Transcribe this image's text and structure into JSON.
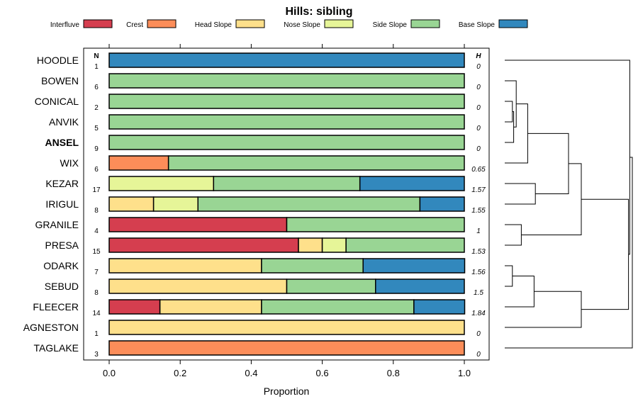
{
  "chart_data": {
    "type": "bar",
    "stacked": true,
    "title": "Hills: sibling",
    "xlabel": "Proportion",
    "xlim": [
      0,
      1
    ],
    "xticks": [
      "0.0",
      "0.2",
      "0.4",
      "0.6",
      "0.8",
      "1.0"
    ],
    "n_header": "N",
    "h_header": "H",
    "legend": [
      {
        "name": "Interfluve",
        "color": "#D53E4F"
      },
      {
        "name": "Crest",
        "color": "#FC8D59"
      },
      {
        "name": "Head Slope",
        "color": "#FEE08B"
      },
      {
        "name": "Nose Slope",
        "color": "#E6F598"
      },
      {
        "name": "Side Slope",
        "color": "#99D594"
      },
      {
        "name": "Base Slope",
        "color": "#3288BD"
      }
    ],
    "rows": [
      {
        "label": "HOODLE",
        "n": "1",
        "h": "0",
        "bold": false,
        "values": [
          0,
          0,
          0,
          0,
          0,
          1
        ]
      },
      {
        "label": "BOWEN",
        "n": "6",
        "h": "0",
        "bold": false,
        "values": [
          0,
          0,
          0,
          0,
          1,
          0
        ]
      },
      {
        "label": "CONICAL",
        "n": "2",
        "h": "0",
        "bold": false,
        "values": [
          0,
          0,
          0,
          0,
          1,
          0
        ]
      },
      {
        "label": "ANVIK",
        "n": "5",
        "h": "0",
        "bold": false,
        "values": [
          0,
          0,
          0,
          0,
          1,
          0
        ]
      },
      {
        "label": "ANSEL",
        "n": "9",
        "h": "0",
        "bold": true,
        "values": [
          0,
          0,
          0,
          0,
          1,
          0
        ]
      },
      {
        "label": "WIX",
        "n": "6",
        "h": "0.65",
        "bold": false,
        "values": [
          0,
          0.167,
          0,
          0,
          0.833,
          0
        ]
      },
      {
        "label": "KEZAR",
        "n": "17",
        "h": "1.57",
        "bold": false,
        "values": [
          0,
          0,
          0,
          0.294,
          0.412,
          0.294
        ]
      },
      {
        "label": "IRIGUL",
        "n": "8",
        "h": "1.55",
        "bold": false,
        "values": [
          0,
          0,
          0.125,
          0.125,
          0.625,
          0.125
        ]
      },
      {
        "label": "GRANILE",
        "n": "4",
        "h": "1",
        "bold": false,
        "values": [
          0.5,
          0,
          0,
          0,
          0.5,
          0
        ]
      },
      {
        "label": "PRESA",
        "n": "15",
        "h": "1.53",
        "bold": false,
        "values": [
          0.533,
          0,
          0.067,
          0.067,
          0.333,
          0
        ]
      },
      {
        "label": "ODARK",
        "n": "7",
        "h": "1.56",
        "bold": false,
        "values": [
          0,
          0,
          0.429,
          0,
          0.286,
          0.286
        ]
      },
      {
        "label": "SEBUD",
        "n": "8",
        "h": "1.5",
        "bold": false,
        "values": [
          0,
          0,
          0.5,
          0,
          0.25,
          0.25
        ]
      },
      {
        "label": "FLEECER",
        "n": "14",
        "h": "1.84",
        "bold": false,
        "values": [
          0.143,
          0,
          0.286,
          0,
          0.429,
          0.143
        ]
      },
      {
        "label": "AGNESTON",
        "n": "1",
        "h": "0",
        "bold": false,
        "values": [
          0,
          0,
          1,
          0,
          0,
          0
        ]
      },
      {
        "label": "TAGLAKE",
        "n": "3",
        "h": "0",
        "bold": false,
        "values": [
          0,
          1,
          0,
          0,
          0,
          0
        ]
      }
    ],
    "dendrogram": {
      "leaves": [
        "HOODLE",
        "BOWEN",
        "CONICAL",
        "ANVIK",
        "ANSEL",
        "WIX",
        "KEZAR",
        "IRIGUL",
        "GRANILE",
        "PRESA",
        "ODARK",
        "SEBUD",
        "FLEECER",
        "AGNESTON",
        "TAGLAKE"
      ],
      "merges": [
        [
          "CONICAL",
          "ANVIK",
          0.06
        ],
        [
          "m0",
          "ANSEL",
          0.07
        ],
        [
          "BOWEN",
          "m1",
          0.09
        ],
        [
          "m2",
          "WIX",
          0.18
        ],
        [
          "KEZAR",
          "IRIGUL",
          0.24
        ],
        [
          "m3",
          "m4",
          0.5
        ],
        [
          "GRANILE",
          "PRESA",
          0.13
        ],
        [
          "m5",
          "m6",
          0.6
        ],
        [
          "ODARK",
          "SEBUD",
          0.06
        ],
        [
          "m8",
          "FLEECER",
          0.23
        ],
        [
          "m9",
          "AGNESTON",
          0.6
        ],
        [
          "m7",
          "m10",
          0.97
        ],
        [
          "HOODLE",
          "m11",
          0.98
        ],
        [
          "m12",
          "TAGLAKE",
          1.0
        ]
      ]
    }
  }
}
